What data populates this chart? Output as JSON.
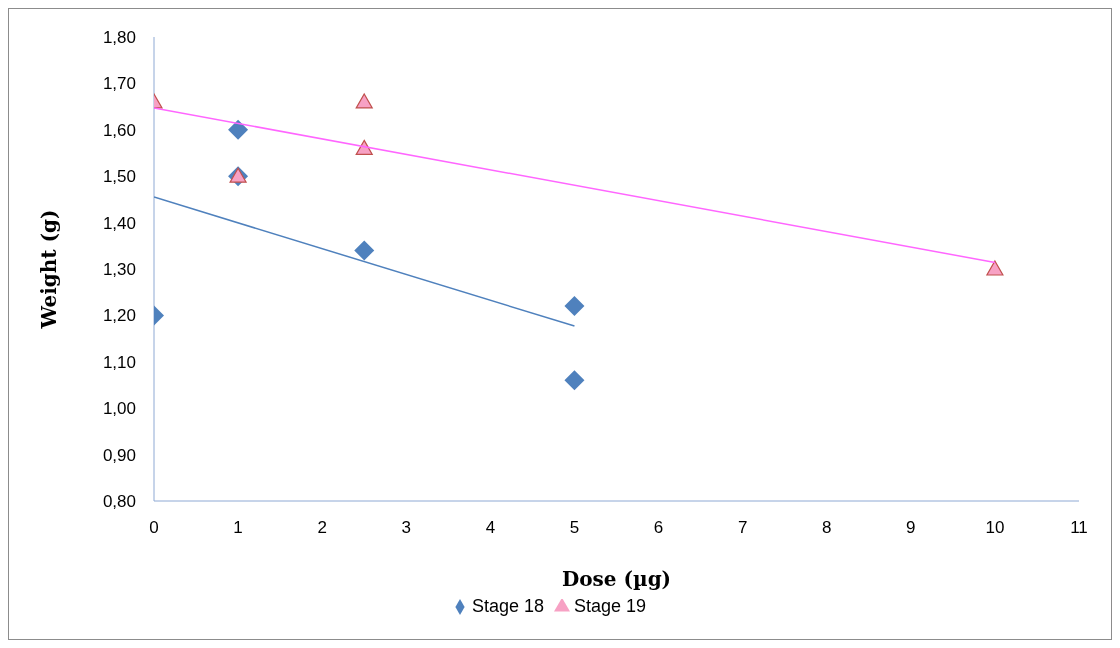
{
  "chart_data": {
    "type": "scatter",
    "xlabel": "Dose (µg)",
    "ylabel": "Weight (g)",
    "xlim": [
      0,
      11
    ],
    "xticks": [
      0,
      1,
      2,
      3,
      4,
      5,
      6,
      7,
      8,
      9,
      10,
      11
    ],
    "ylim": [
      0.8,
      1.8
    ],
    "yticks": [
      {
        "value": 0.8,
        "label": "0,80"
      },
      {
        "value": 0.9,
        "label": "0,90"
      },
      {
        "value": 1.0,
        "label": "1,00"
      },
      {
        "value": 1.1,
        "label": "1,10"
      },
      {
        "value": 1.2,
        "label": "1,20"
      },
      {
        "value": 1.3,
        "label": "1,30"
      },
      {
        "value": 1.4,
        "label": "1,40"
      },
      {
        "value": 1.5,
        "label": "1,50"
      },
      {
        "value": 1.6,
        "label": "1,60"
      },
      {
        "value": 1.7,
        "label": "1,70"
      },
      {
        "value": 1.8,
        "label": "1,80"
      }
    ],
    "grid": false,
    "legend": "bottom",
    "series": [
      {
        "name": "Stage 18",
        "marker": "diamond",
        "color": "#4f81bd",
        "x": [
          0,
          1,
          1,
          2.5,
          5,
          5
        ],
        "values": [
          1.2,
          1.6,
          1.5,
          1.34,
          1.22,
          1.06
        ]
      },
      {
        "name": "Stage 19",
        "marker": "triangle",
        "color": "#f7a1c4",
        "x": [
          0,
          1,
          2.5,
          2.5,
          10
        ],
        "values": [
          1.66,
          1.5,
          1.66,
          1.56,
          1.3
        ]
      },
      {
        "type": "line",
        "marker": "none",
        "color": "#4f81bd",
        "x": [
          0,
          5
        ],
        "values": [
          1.455,
          1.177
        ]
      },
      {
        "type": "line",
        "marker": "none",
        "color": "#ff66ff",
        "x": [
          0,
          10
        ],
        "values": [
          1.647,
          1.314
        ]
      }
    ]
  }
}
